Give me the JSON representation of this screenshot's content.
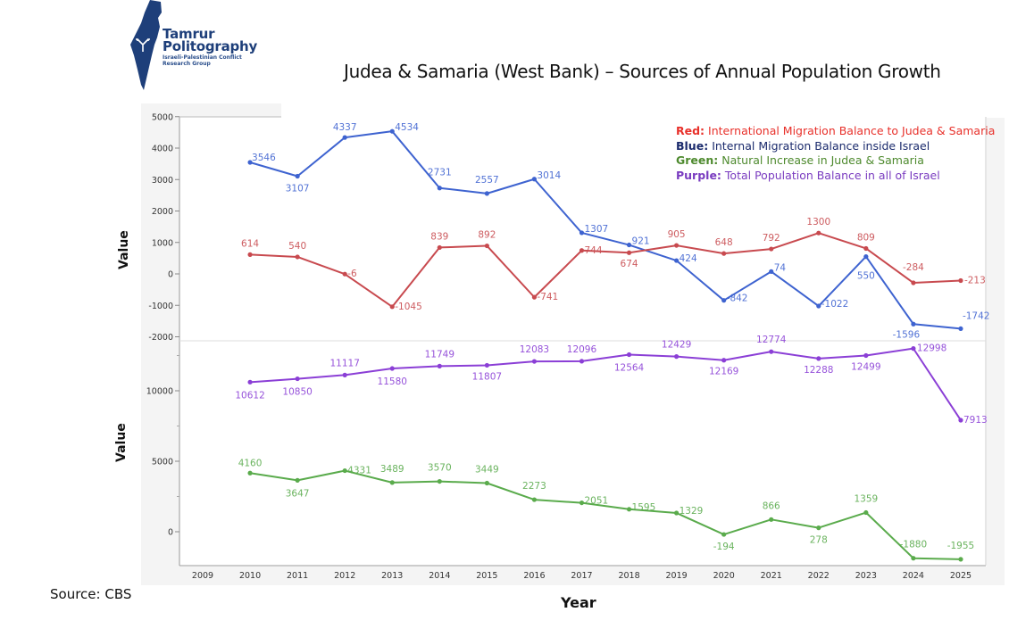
{
  "logo": {
    "line1": "Tamrur",
    "line2": "Politography",
    "sub1": "Israeli-Palestinian Conflict",
    "sub2": "Research Group",
    "icon": "israel-map-icon",
    "brand_color": "#1e3f7a"
  },
  "source": "Source: CBS",
  "chart_data": {
    "type": "line",
    "title": "Judea & Samaria (West Bank) – Sources of Annual Population Growth",
    "xlabel": "Year",
    "x_ticks": [
      "2009",
      "2010",
      "2011",
      "2012",
      "2013",
      "2014",
      "2015",
      "2016",
      "2017",
      "2018",
      "2019",
      "2020",
      "2021",
      "2022",
      "2023",
      "2024",
      "2025"
    ],
    "x": [
      2010,
      2011,
      2012,
      2013,
      2014,
      2015,
      2016,
      2017,
      2018,
      2019,
      2020,
      2021,
      2022,
      2023,
      2024,
      2025
    ],
    "legend": [
      {
        "key": "Red:",
        "text": "International Migration Balance to Judea & Samaria",
        "color": "#e8302a"
      },
      {
        "key": "Blue:",
        "text": "Internal Migration Balance inside Israel",
        "color": "#1a2a6c"
      },
      {
        "key": "Green:",
        "text": "Natural Increase in Judea & Samaria",
        "color": "#4e8a2e"
      },
      {
        "key": "Purple:",
        "text": "Total Population Balance in all of Israel",
        "color": "#7a3cc0"
      }
    ],
    "legend_position": "top-right",
    "panels": [
      {
        "name": "top",
        "ylabel": "Value",
        "ylim": [
          -2000,
          5000
        ],
        "y_ticks": [
          5000,
          4000,
          3000,
          2000,
          1000,
          0,
          -1000,
          -2000
        ],
        "series": [
          {
            "name": "Internal Migration Balance inside Israel",
            "color": "#3e63d0",
            "values": [
              3546,
              3107,
              4337,
              4534,
              2731,
              2557,
              3014,
              1307,
              921,
              424,
              -842,
              74,
              -1022,
              550,
              -1596,
              -1742
            ]
          },
          {
            "name": "International Migration Balance to Judea & Samaria",
            "color": "#c84a4f",
            "values": [
              614,
              540,
              -6,
              -1045,
              839,
              892,
              -741,
              744,
              674,
              905,
              648,
              792,
              1300,
              809,
              -284,
              -213
            ]
          }
        ]
      },
      {
        "name": "bottom",
        "ylabel": "Value",
        "ylim": [
          -2500,
          12500
        ],
        "y_ticks": [
          10000,
          5000,
          0
        ],
        "series": [
          {
            "name": "Total Population Balance in all of Israel",
            "color": "#8b3fd6",
            "values": [
              10612,
              10850,
              11117,
              11580,
              11749,
              11807,
              12083,
              12096,
              12564,
              12429,
              12169,
              12774,
              12288,
              12499,
              12998,
              7913
            ]
          },
          {
            "name": "Natural Increase in Judea & Samaria",
            "color": "#5aab4c",
            "values": [
              4160,
              3647,
              4331,
              3489,
              3570,
              3449,
              2273,
              2051,
              1595,
              1329,
              -194,
              866,
              278,
              1359,
              -1880,
              -1955
            ]
          }
        ]
      }
    ]
  }
}
